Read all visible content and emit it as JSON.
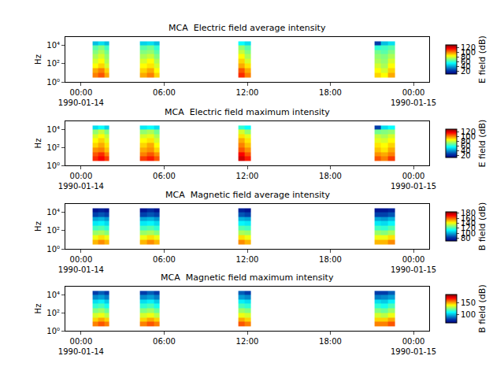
{
  "chart_data": [
    {
      "type": "heatmap",
      "title": "MCA  Electric field average intensity",
      "x": [
        "1990-01-14 00:50",
        "1990-01-14 01:15",
        "1990-01-14 01:40",
        "1990-01-14 02:00",
        "1990-01-14 04:15",
        "1990-01-14 04:45",
        "1990-01-14 05:15",
        "1990-01-14 05:40",
        "1990-01-14 11:20",
        "1990-01-14 11:50",
        "1990-01-14 12:15",
        "1990-01-14 21:10",
        "1990-01-14 21:40",
        "1990-01-14 22:10",
        "1990-01-14 22:40"
      ],
      "y": [
        3,
        10,
        30,
        100,
        300,
        1000,
        3000,
        10000,
        25000
      ],
      "z": [
        [
          100,
          105,
          95,
          null,
          95,
          100,
          90,
          null,
          110,
          100,
          null,
          90,
          85,
          95
        ],
        [
          95,
          100,
          90,
          null,
          90,
          95,
          85,
          null,
          105,
          95,
          null,
          85,
          80,
          90
        ],
        [
          85,
          90,
          80,
          null,
          85,
          88,
          80,
          null,
          95,
          88,
          null,
          80,
          75,
          85
        ],
        [
          80,
          85,
          75,
          null,
          80,
          85,
          75,
          null,
          90,
          80,
          null,
          75,
          72,
          80
        ],
        [
          75,
          80,
          72,
          null,
          75,
          78,
          70,
          null,
          85,
          75,
          null,
          72,
          70,
          75
        ],
        [
          70,
          75,
          68,
          null,
          70,
          72,
          65,
          null,
          78,
          70,
          null,
          68,
          65,
          70
        ],
        [
          65,
          70,
          62,
          null,
          65,
          68,
          60,
          null,
          72,
          65,
          null,
          60,
          62,
          65
        ],
        [
          45,
          50,
          45,
          null,
          48,
          50,
          45,
          null,
          55,
          50,
          null,
          25,
          45,
          50
        ]
      ],
      "xlim": [
        "1990-01-13 22:52",
        "1990-01-15 01:08"
      ],
      "xticks": [
        {
          "value": "1990-01-14 00:00",
          "label": "00:00\n1990-01-14"
        },
        {
          "value": "1990-01-14 06:00",
          "label": "06:00"
        },
        {
          "value": "1990-01-14 12:00",
          "label": "12:00"
        },
        {
          "value": "1990-01-14 18:00",
          "label": "18:00"
        },
        {
          "value": "1990-01-15 00:00",
          "label": "00:00\n1990-01-15"
        }
      ],
      "ylim": [
        1,
        74000
      ],
      "yticks": [
        {
          "value": 1,
          "label": "10⁰"
        },
        {
          "value": 100,
          "label": "10²"
        },
        {
          "value": 10000,
          "label": "10⁴"
        }
      ],
      "ylabel": "Hz",
      "log": "y",
      "grid": false,
      "colorbar": {
        "title": "E field (dB)",
        "range": [
          10,
          130
        ],
        "ticks": [
          20,
          40,
          60,
          80,
          100,
          120
        ]
      }
    },
    {
      "type": "heatmap",
      "title": "MCA  Electric field maximum intensity",
      "x": [
        "1990-01-14 00:50",
        "1990-01-14 01:15",
        "1990-01-14 01:40",
        "1990-01-14 02:00",
        "1990-01-14 04:15",
        "1990-01-14 04:45",
        "1990-01-14 05:15",
        "1990-01-14 05:40",
        "1990-01-14 11:20",
        "1990-01-14 11:50",
        "1990-01-14 12:15",
        "1990-01-14 21:10",
        "1990-01-14 21:40",
        "1990-01-14 22:10",
        "1990-01-14 22:40"
      ],
      "y": [
        3,
        10,
        30,
        100,
        300,
        1000,
        3000,
        10000,
        25000
      ],
      "z": [
        [
          110,
          115,
          108,
          null,
          108,
          112,
          105,
          null,
          120,
          112,
          null,
          105,
          100,
          108
        ],
        [
          105,
          110,
          100,
          null,
          100,
          105,
          98,
          null,
          115,
          105,
          null,
          98,
          95,
          100
        ],
        [
          98,
          100,
          92,
          null,
          95,
          98,
          90,
          null,
          105,
          98,
          null,
          92,
          88,
          95
        ],
        [
          90,
          95,
          88,
          null,
          90,
          95,
          85,
          null,
          100,
          92,
          null,
          88,
          85,
          90
        ],
        [
          85,
          90,
          82,
          null,
          85,
          88,
          80,
          null,
          95,
          88,
          null,
          82,
          80,
          85
        ],
        [
          80,
          85,
          78,
          null,
          80,
          82,
          75,
          null,
          88,
          82,
          null,
          78,
          75,
          80
        ],
        [
          72,
          78,
          70,
          null,
          72,
          75,
          68,
          null,
          80,
          72,
          null,
          68,
          70,
          72
        ],
        [
          50,
          55,
          48,
          null,
          52,
          55,
          50,
          null,
          60,
          55,
          null,
          25,
          50,
          55
        ]
      ],
      "xlim": [
        "1990-01-13 22:52",
        "1990-01-15 01:08"
      ],
      "xticks": [
        {
          "value": "1990-01-14 00:00",
          "label": "00:00\n1990-01-14"
        },
        {
          "value": "1990-01-14 06:00",
          "label": "06:00"
        },
        {
          "value": "1990-01-14 12:00",
          "label": "12:00"
        },
        {
          "value": "1990-01-14 18:00",
          "label": "18:00"
        },
        {
          "value": "1990-01-15 00:00",
          "label": "00:00\n1990-01-15"
        }
      ],
      "ylim": [
        1,
        74000
      ],
      "yticks": [
        {
          "value": 1,
          "label": "10⁰"
        },
        {
          "value": 100,
          "label": "10²"
        },
        {
          "value": 10000,
          "label": "10⁴"
        }
      ],
      "ylabel": "Hz",
      "log": "y",
      "grid": false,
      "colorbar": {
        "title": "E field (dB)",
        "range": [
          10,
          130
        ],
        "ticks": [
          20,
          40,
          60,
          80,
          100,
          120
        ]
      }
    },
    {
      "type": "heatmap",
      "title": "MCA  Magnetic field average intensity",
      "x": [
        "1990-01-14 00:50",
        "1990-01-14 01:15",
        "1990-01-14 01:40",
        "1990-01-14 02:00",
        "1990-01-14 04:15",
        "1990-01-14 04:45",
        "1990-01-14 05:15",
        "1990-01-14 05:40",
        "1990-01-14 11:20",
        "1990-01-14 11:50",
        "1990-01-14 12:15",
        "1990-01-14 21:10",
        "1990-01-14 21:40",
        "1990-01-14 22:10",
        "1990-01-14 22:40"
      ],
      "y": [
        3,
        10,
        30,
        100,
        300,
        1000,
        3000,
        10000,
        25000
      ],
      "z": [
        [
          150,
          155,
          150,
          null,
          150,
          155,
          150,
          null,
          155,
          150,
          null,
          150,
          150,
          155
        ],
        [
          140,
          145,
          140,
          null,
          140,
          145,
          140,
          null,
          145,
          140,
          null,
          140,
          140,
          145
        ],
        [
          130,
          132,
          128,
          null,
          130,
          132,
          128,
          null,
          132,
          130,
          null,
          130,
          128,
          132
        ],
        [
          120,
          122,
          118,
          null,
          120,
          122,
          118,
          null,
          122,
          120,
          null,
          120,
          118,
          122
        ],
        [
          110,
          112,
          108,
          null,
          110,
          112,
          108,
          null,
          112,
          110,
          null,
          110,
          108,
          112
        ],
        [
          100,
          102,
          98,
          null,
          100,
          102,
          98,
          null,
          102,
          100,
          null,
          100,
          98,
          102
        ],
        [
          85,
          88,
          85,
          null,
          85,
          88,
          85,
          null,
          88,
          85,
          null,
          85,
          85,
          88
        ],
        [
          75,
          78,
          75,
          null,
          75,
          80,
          75,
          null,
          78,
          75,
          null,
          75,
          75,
          78
        ]
      ],
      "xlim": [
        "1990-01-13 22:52",
        "1990-01-15 01:08"
      ],
      "xticks": [
        {
          "value": "1990-01-14 00:00",
          "label": "00:00\n1990-01-14"
        },
        {
          "value": "1990-01-14 06:00",
          "label": "06:00"
        },
        {
          "value": "1990-01-14 12:00",
          "label": "12:00"
        },
        {
          "value": "1990-01-14 18:00",
          "label": "18:00"
        },
        {
          "value": "1990-01-15 00:00",
          "label": "00:00\n1990-01-15"
        }
      ],
      "ylim": [
        1,
        74000
      ],
      "yticks": [
        {
          "value": 1,
          "label": "10⁰"
        },
        {
          "value": 100,
          "label": "10²"
        },
        {
          "value": 10000,
          "label": "10⁴"
        }
      ],
      "ylabel": "Hz",
      "log": "y",
      "grid": false,
      "colorbar": {
        "title": "B field (dB)",
        "range": [
          70,
          185
        ],
        "ticks": [
          80,
          100,
          120,
          140,
          160,
          180
        ]
      }
    },
    {
      "type": "heatmap",
      "title": "MCA  Magnetic field maximum intensity",
      "x": [
        "1990-01-14 00:50",
        "1990-01-14 01:15",
        "1990-01-14 01:40",
        "1990-01-14 02:00",
        "1990-01-14 04:15",
        "1990-01-14 04:45",
        "1990-01-14 05:15",
        "1990-01-14 05:40",
        "1990-01-14 11:20",
        "1990-01-14 11:50",
        "1990-01-14 12:15",
        "1990-01-14 21:10",
        "1990-01-14 21:40",
        "1990-01-14 22:10",
        "1990-01-14 22:40"
      ],
      "y": [
        3,
        10,
        30,
        100,
        300,
        1000,
        3000,
        10000,
        25000
      ],
      "z": [
        [
          155,
          160,
          155,
          null,
          155,
          160,
          155,
          null,
          160,
          155,
          null,
          155,
          155,
          160
        ],
        [
          145,
          150,
          145,
          null,
          145,
          150,
          145,
          null,
          150,
          145,
          null,
          145,
          145,
          150
        ],
        [
          135,
          138,
          132,
          null,
          135,
          138,
          132,
          null,
          138,
          135,
          null,
          135,
          132,
          138
        ],
        [
          125,
          128,
          122,
          null,
          125,
          128,
          122,
          null,
          128,
          125,
          null,
          125,
          122,
          128
        ],
        [
          115,
          118,
          112,
          null,
          115,
          118,
          112,
          null,
          118,
          115,
          null,
          115,
          112,
          118
        ],
        [
          105,
          108,
          102,
          null,
          105,
          108,
          102,
          null,
          108,
          105,
          null,
          105,
          102,
          108
        ],
        [
          92,
          95,
          90,
          null,
          92,
          95,
          90,
          null,
          95,
          92,
          null,
          90,
          92,
          95
        ],
        [
          80,
          85,
          80,
          null,
          80,
          85,
          80,
          null,
          85,
          80,
          null,
          80,
          80,
          85
        ]
      ],
      "xlim": [
        "1990-01-13 22:52",
        "1990-01-15 01:08"
      ],
      "xticks": [
        {
          "value": "1990-01-14 00:00",
          "label": "00:00\n1990-01-14"
        },
        {
          "value": "1990-01-14 06:00",
          "label": "06:00"
        },
        {
          "value": "1990-01-14 12:00",
          "label": "12:00"
        },
        {
          "value": "1990-01-14 18:00",
          "label": "18:00"
        },
        {
          "value": "1990-01-15 00:00",
          "label": "00:00\n1990-01-15"
        }
      ],
      "ylim": [
        1,
        74000
      ],
      "yticks": [
        {
          "value": 1,
          "label": "10⁰"
        },
        {
          "value": 100,
          "label": "10²"
        },
        {
          "value": 10000,
          "label": "10⁴"
        }
      ],
      "ylabel": "Hz",
      "log": "y",
      "grid": false,
      "colorbar": {
        "title": "B field (dB)",
        "range": [
          65,
          185
        ],
        "ticks": [
          100,
          150
        ]
      }
    }
  ]
}
